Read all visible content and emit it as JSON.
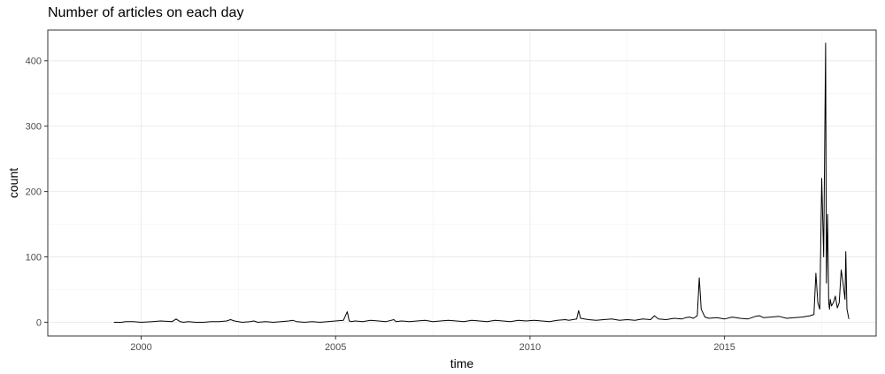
{
  "chart_data": {
    "type": "line",
    "title": "Number of articles on each day",
    "xlabel": "time",
    "ylabel": "count",
    "x_ticks": [
      2000,
      2005,
      2010,
      2015
    ],
    "y_ticks": [
      0,
      100,
      200,
      300,
      400
    ],
    "xlim": [
      1997.6,
      2018.9
    ],
    "ylim": [
      -21,
      447
    ],
    "grid": true,
    "line_color": "#000000",
    "series": [
      {
        "x": [
          1999.3,
          1999.5,
          1999.6,
          1999.8,
          2000.0,
          2000.3,
          2000.5,
          2000.8,
          2000.9,
          2001.0,
          2001.1,
          2001.2,
          2001.4,
          2001.6,
          2001.8,
          2002.0,
          2002.2,
          2002.3,
          2002.4,
          2002.5,
          2002.6,
          2002.8,
          2002.9,
          2003.0,
          2003.2,
          2003.4,
          2003.6,
          2003.8,
          2003.9,
          2004.0,
          2004.2,
          2004.4,
          2004.6,
          2004.8,
          2005.0,
          2005.2,
          2005.3,
          2005.35,
          2005.4,
          2005.5,
          2005.7,
          2005.9,
          2006.1,
          2006.3,
          2006.5,
          2006.55,
          2006.7,
          2006.9,
          2007.1,
          2007.3,
          2007.5,
          2007.7,
          2007.9,
          2008.1,
          2008.3,
          2008.5,
          2008.7,
          2008.9,
          2009.1,
          2009.3,
          2009.5,
          2009.7,
          2009.9,
          2010.1,
          2010.3,
          2010.5,
          2010.7,
          2010.9,
          2011.0,
          2011.2,
          2011.25,
          2011.3,
          2011.5,
          2011.7,
          2011.9,
          2012.1,
          2012.3,
          2012.5,
          2012.7,
          2012.9,
          2013.1,
          2013.2,
          2013.3,
          2013.5,
          2013.7,
          2013.9,
          2014.0,
          2014.1,
          2014.2,
          2014.3,
          2014.35,
          2014.4,
          2014.5,
          2014.6,
          2014.8,
          2015.0,
          2015.2,
          2015.4,
          2015.6,
          2015.8,
          2015.9,
          2016.0,
          2016.2,
          2016.4,
          2016.6,
          2016.8,
          2017.0,
          2017.2,
          2017.3,
          2017.35,
          2017.4,
          2017.45,
          2017.5,
          2017.55,
          2017.6,
          2017.62,
          2017.65,
          2017.68,
          2017.7,
          2017.72,
          2017.75,
          2017.8,
          2017.85,
          2017.9,
          2017.95,
          2018.0,
          2018.05,
          2018.1,
          2018.12,
          2018.15,
          2018.2
        ],
        "y": [
          0,
          0,
          1,
          1,
          0,
          1,
          2,
          1,
          5,
          1,
          0,
          1,
          0,
          0,
          1,
          1,
          2,
          4,
          2,
          1,
          0,
          1,
          2,
          0,
          1,
          0,
          1,
          2,
          3,
          1,
          0,
          1,
          0,
          1,
          2,
          3,
          16,
          2,
          1,
          2,
          1,
          3,
          2,
          1,
          4,
          1,
          2,
          1,
          2,
          3,
          1,
          2,
          3,
          2,
          1,
          3,
          2,
          1,
          3,
          2,
          1,
          3,
          2,
          3,
          2,
          1,
          3,
          4,
          3,
          5,
          18,
          6,
          4,
          3,
          4,
          5,
          3,
          4,
          3,
          5,
          4,
          10,
          5,
          4,
          6,
          5,
          7,
          8,
          6,
          10,
          68,
          20,
          8,
          6,
          7,
          5,
          8,
          6,
          5,
          9,
          10,
          7,
          8,
          9,
          6,
          7,
          8,
          10,
          12,
          75,
          30,
          20,
          220,
          100,
          427,
          60,
          165,
          30,
          20,
          35,
          25,
          30,
          40,
          22,
          30,
          80,
          60,
          35,
          108,
          20,
          5
        ]
      }
    ]
  }
}
